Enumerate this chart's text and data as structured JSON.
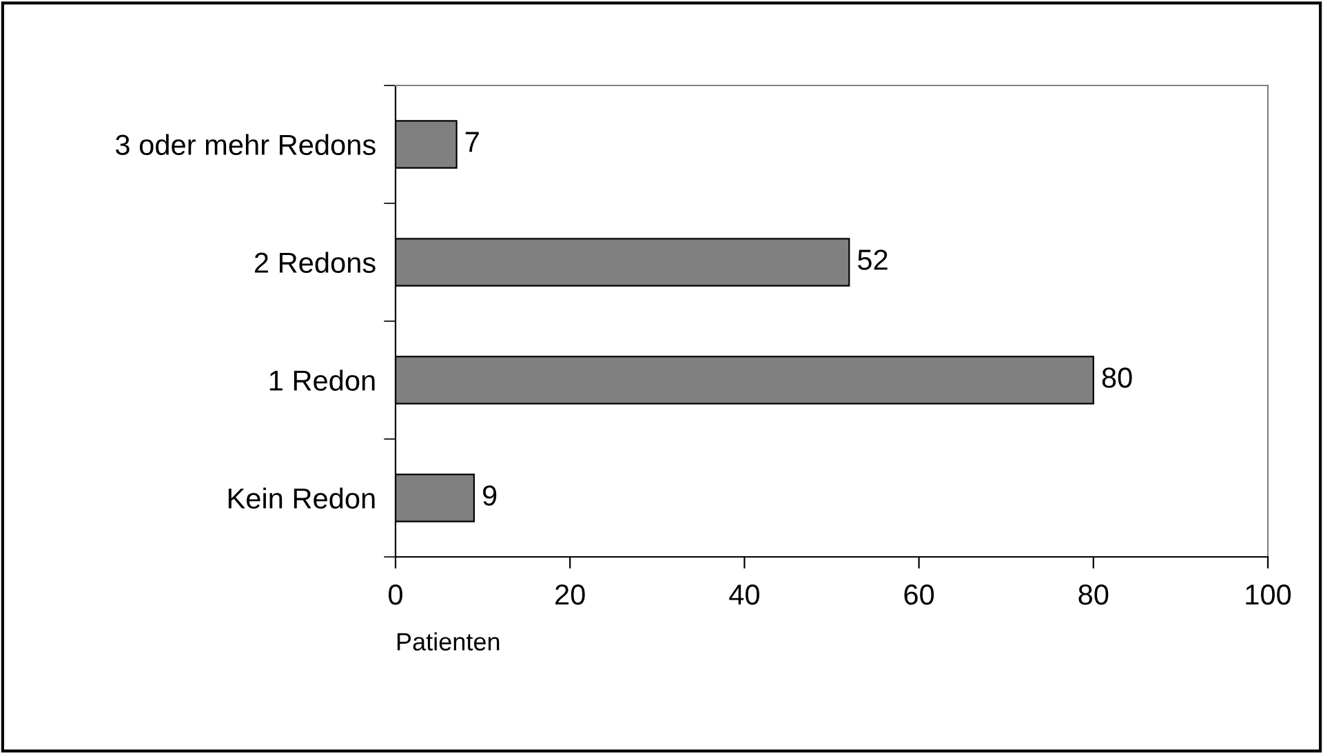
{
  "chart_data": {
    "type": "bar",
    "orientation": "horizontal",
    "categories": [
      "3 oder mehr Redons",
      "2 Redons",
      "1 Redon",
      "Kein Redon"
    ],
    "values": [
      7,
      52,
      80,
      9
    ],
    "color": "#808080",
    "xlabel": "Patienten",
    "xlim": [
      0,
      100
    ],
    "xticks": [
      0,
      20,
      40,
      60,
      80,
      100
    ],
    "data_labels": true,
    "grid": false,
    "legend": false
  }
}
